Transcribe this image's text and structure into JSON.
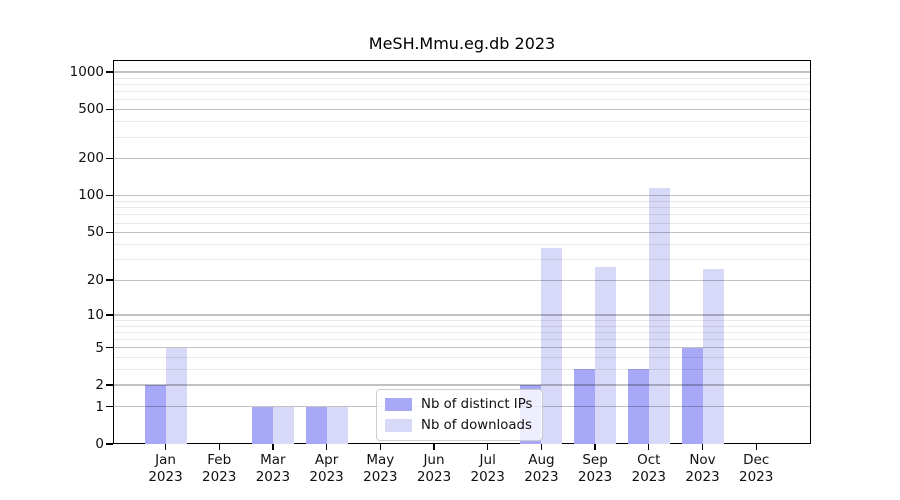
{
  "title": "MeSH.Mmu.eg.db 2023",
  "legend": {
    "items": [
      {
        "label": "Nb of distinct IPs",
        "color": "#a8a8f8"
      },
      {
        "label": "Nb of downloads",
        "color": "#d8d8f8"
      }
    ]
  },
  "chart_data": {
    "type": "bar",
    "title": "MeSH.Mmu.eg.db 2023",
    "categories": [
      "Jan",
      "Feb",
      "Mar",
      "Apr",
      "May",
      "Jun",
      "Jul",
      "Aug",
      "Sep",
      "Oct",
      "Nov",
      "Dec"
    ],
    "year_label": "2023",
    "series": [
      {
        "name": "Nb of distinct IPs",
        "color": "#a8a8f8",
        "values": [
          2,
          0,
          1,
          1,
          0,
          0,
          0,
          2,
          3,
          3,
          5,
          0
        ]
      },
      {
        "name": "Nb of downloads",
        "color": "#d8d8f8",
        "values": [
          5,
          0,
          1,
          1,
          0,
          0,
          0,
          37,
          26,
          115,
          25,
          0
        ]
      }
    ],
    "y_scale": "log10(value+1)",
    "y_ticks": [
      0,
      1,
      2,
      5,
      10,
      20,
      50,
      100,
      200,
      500,
      1000
    ],
    "y_minor_gridlines": [
      3,
      4,
      6,
      7,
      8,
      9,
      30,
      40,
      60,
      70,
      80,
      90,
      300,
      400,
      600,
      700,
      800,
      900
    ],
    "ylim": [
      0,
      1250
    ],
    "xlabel": "",
    "ylabel": "",
    "grid": "on",
    "grid_above_bars": true,
    "legend_position": "lower-center",
    "colors": {
      "major_grid": "#c2c2c2",
      "minor_grid": "#ececec",
      "axis": "#000000",
      "background": "#ffffff"
    }
  }
}
